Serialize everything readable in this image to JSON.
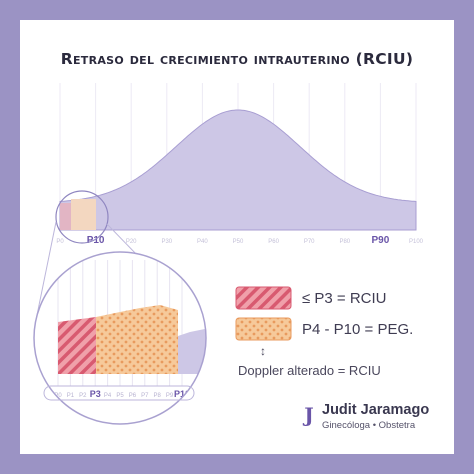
{
  "title": "Retraso del crecimiento intrauterino (RCIU)",
  "top_axis": {
    "ticks": [
      "P0",
      "P10",
      "P20",
      "P30",
      "P40",
      "P50",
      "P60",
      "P70",
      "P80",
      "P90",
      "P100"
    ],
    "highlight": [
      "P10",
      "P90"
    ]
  },
  "zoom_axis": {
    "ticks": [
      "P0",
      "P1",
      "P2",
      "P3",
      "P4",
      "P5",
      "P6",
      "P7",
      "P8",
      "P9",
      "P10"
    ],
    "highlight": [
      "P3",
      "P10"
    ]
  },
  "legend": [
    {
      "label": "≤ P3 = RCIU",
      "color": "#e8808f",
      "pattern": "stripes"
    },
    {
      "label": "P4 - P10 = PEG.",
      "color": "#f4c08c",
      "pattern": "dots"
    }
  ],
  "doppler": {
    "arrow": "↕",
    "label": "Doppler alterado = RCIU"
  },
  "brand": {
    "logo": "J",
    "name": "Judit Jaramago",
    "subtitle": "Ginecóloga • Obstetra"
  },
  "colors": {
    "frame": "#9b93c4",
    "curve_fill": "#cdc7e6",
    "accent": "#6a55a8",
    "rciu": "#e8808f",
    "peg": "#f4c08c"
  }
}
